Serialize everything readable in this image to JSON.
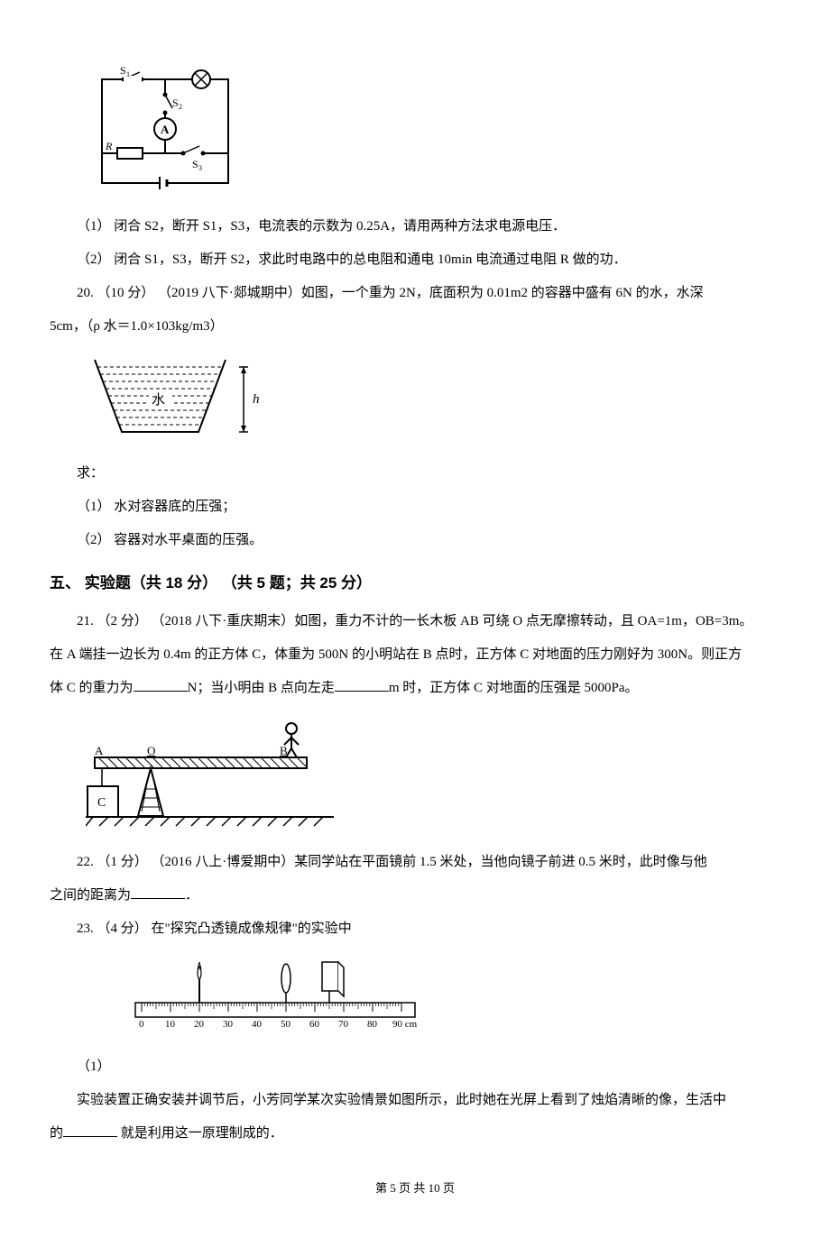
{
  "circuit_labels": {
    "s1": "S₁",
    "s2": "S₂",
    "s3": "S₃",
    "a": "A",
    "r": "R"
  },
  "q19_part1": "（1） 闭合 S2，断开 S1，S3，电流表的示数为 0.25A，请用两种方法求电源电压．",
  "q19_part2": "（2） 闭合 S1，S3，断开 S2，求此时电路中的总电阻和通电 10min 电流通过电阻 R 做的功．",
  "q20_intro_a": "20. （10 分） （2019 八下·郯城期中）如图，一个重为 2N，底面积为 0.01m2 的容器中盛有 6N 的水，水深",
  "q20_intro_b": "5cm，（ρ 水＝1.0×103kg/m3）",
  "q20_label_water": "水",
  "q20_label_h": "h",
  "q20_qiu": "求：",
  "q20_part1": "（1） 水对容器底的压强；",
  "q20_part2": "（2） 容器对水平桌面的压强。",
  "section5_header": "五、 实验题（共 18 分） （共 5 题；共 25 分）",
  "q21_line1": "21. （2 分） （2018 八下·重庆期末）如图，重力不计的一长木板 AB 可绕 O 点无摩擦转动，且 OA=1m，OB=3m。",
  "q21_line2": "在 A 端挂一边长为 0.4m 的正方体 C，体重为 500N 的小明站在 B 点时，正方体 C 对地面的压力刚好为 300N。则正方",
  "q21_line3_a": "体 C 的重力为",
  "q21_line3_b": "N；当小明由 B 点向左走",
  "q21_line3_c": "m 时，正方体 C 对地面的压强是 5000Pa。",
  "q21_labels": {
    "a": "A",
    "o": "O",
    "b": "B",
    "c": "C"
  },
  "q22_a": "22. （1 分） （2016 八上·博爱期中）某同学站在平面镜前 1.5 米处，当他向镜子前进 0.5 米时，此时像与他",
  "q22_b": "之间的距离为",
  "q22_c": "．",
  "q23_intro": "23. （4 分） 在\"探究凸透镜成像规律\"的实验中",
  "q23_ruler_labels": [
    "0",
    "10",
    "20",
    "30",
    "40",
    "50",
    "60",
    "70",
    "80",
    "90 cm"
  ],
  "q23_part1": "（1）",
  "q23_line2_a": "实验装置正确安装并调节后，小芳同学某次实验情景如图所示，此时她在光屏上看到了烛焰清晰的像，生活中",
  "q23_line2_b": "的",
  "q23_line2_c": " 就是利用这一原理制成的．",
  "footer": "第 5 页 共 10 页",
  "colors": {
    "stroke": "#000000",
    "fill_none": "none",
    "white": "#ffffff"
  }
}
